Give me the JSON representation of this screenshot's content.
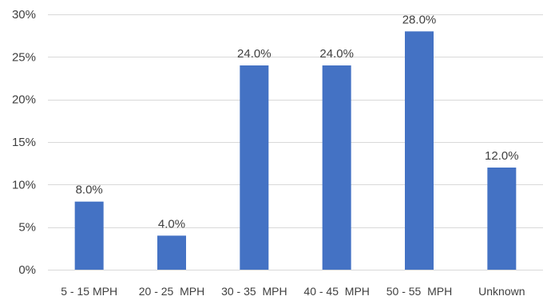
{
  "chart_data": {
    "type": "bar",
    "categories": [
      "5 - 15 MPH",
      "20 - 25  MPH",
      "30 - 35  MPH",
      "40 - 45  MPH",
      "50 - 55  MPH",
      "Unknown"
    ],
    "values": [
      8.0,
      4.0,
      24.0,
      24.0,
      28.0,
      12.0
    ],
    "data_labels": [
      "8.0%",
      "4.0%",
      "24.0%",
      "24.0%",
      "28.0%",
      "12.0%"
    ],
    "y_ticks": [
      0,
      5,
      10,
      15,
      20,
      25,
      30
    ],
    "y_tick_labels": [
      "0%",
      "5%",
      "10%",
      "15%",
      "20%",
      "25%",
      "30%"
    ],
    "ylim": [
      0,
      30
    ],
    "grid": true,
    "legend": "none",
    "bar_color": "#4472c4",
    "title": "",
    "xlabel": "",
    "ylabel": ""
  }
}
